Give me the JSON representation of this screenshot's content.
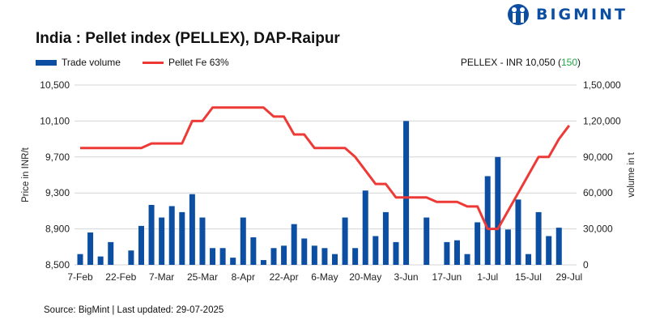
{
  "logo": {
    "text": "BIGMINT",
    "color": "#0b4ea2"
  },
  "title": "India : Pellet index (PELLEX), DAP-Raipur",
  "summary": {
    "prefix": "PELLEX - INR 10,050 (",
    "change": "150",
    "suffix": ")",
    "change_color": "#22a846"
  },
  "source": "Source: BigMint | Last updated: 29-07-2025",
  "chart_data": {
    "type": "bar+line",
    "title": "India : Pellet index (PELLEX), DAP-Raipur",
    "legend_position": "top-left",
    "grid": true,
    "x_tick_labels": [
      "7-Feb",
      "22-Feb",
      "7-Mar",
      "25-Mar",
      "8-Apr",
      "22-Apr",
      "6-May",
      "20-May",
      "3-Jun",
      "17-Jun",
      "1-Jul",
      "15-Jul",
      "29-Jul"
    ],
    "y_left": {
      "label": "Price in INR/t",
      "lim": [
        8500,
        10500
      ],
      "ticks": [
        "8,500",
        "8,900",
        "9,300",
        "9,700",
        "10,100",
        "10,500"
      ]
    },
    "y_right": {
      "label": "volume in t",
      "lim": [
        0,
        150000
      ],
      "ticks": [
        "0",
        "30,000",
        "60,000",
        "90,000",
        "1,20,000",
        "1,50,000"
      ]
    },
    "series": [
      {
        "name": "Trade volume",
        "type": "bar",
        "axis": "right",
        "color": "#0b4ea2",
        "values": [
          9000,
          27000,
          7000,
          19000,
          0,
          12000,
          32500,
          50000,
          39500,
          49000,
          44000,
          59000,
          39500,
          14000,
          14000,
          6000,
          39500,
          23000,
          4000,
          14000,
          16000,
          34000,
          22000,
          16000,
          14000,
          9000,
          39500,
          14000,
          62000,
          24000,
          44000,
          19000,
          120000,
          0,
          39500,
          0,
          19000,
          20500,
          9000,
          35500,
          74000,
          90000,
          29500,
          54500,
          9000,
          44000,
          24000,
          31000,
          0
        ]
      },
      {
        "name": "Pellet Fe 63%",
        "type": "line",
        "axis": "left",
        "color": "#ee3a36",
        "values": [
          9800,
          9800,
          9800,
          9800,
          9800,
          9800,
          9800,
          9850,
          9850,
          9850,
          9850,
          10100,
          10100,
          10250,
          10250,
          10250,
          10250,
          10250,
          10250,
          10150,
          10150,
          9950,
          9950,
          9800,
          9800,
          9800,
          9800,
          9700,
          9550,
          9400,
          9400,
          9250,
          9250,
          9250,
          9250,
          9200,
          9200,
          9200,
          9150,
          9150,
          8900,
          8900,
          9100,
          9300,
          9500,
          9700,
          9700,
          9900,
          10050
        ]
      }
    ]
  }
}
